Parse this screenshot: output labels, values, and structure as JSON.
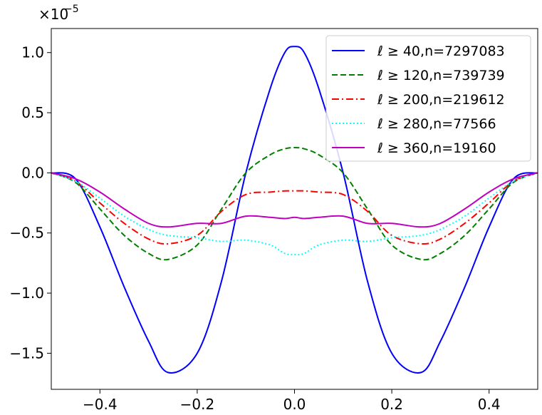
{
  "chart_data": {
    "type": "line",
    "title": "",
    "xlabel": "",
    "ylabel": "",
    "y_offset_base": "×10",
    "y_offset_exp": "−5",
    "xlim": [
      -0.5,
      0.5
    ],
    "ylim": [
      -1.8,
      1.2
    ],
    "xticks": [
      -0.4,
      -0.2,
      0.0,
      0.2,
      0.4
    ],
    "xtick_labels": [
      "−0.4",
      "−0.2",
      "0.0",
      "0.2",
      "0.4"
    ],
    "yticks": [
      1.0,
      0.5,
      0.0,
      -0.5,
      -1.0,
      -1.5
    ],
    "ytick_labels": [
      "1.0",
      "0.5",
      "0.0",
      "−0.5",
      "−1.0",
      "−1.5"
    ],
    "grid": false,
    "legend_position": "top-right",
    "x": [
      -0.5,
      -0.45,
      -0.4,
      -0.35,
      -0.3,
      -0.26,
      -0.2,
      -0.15,
      -0.1,
      -0.05,
      -0.02,
      0.0,
      0.02,
      0.05,
      0.1,
      0.15,
      0.2,
      0.26,
      0.3,
      0.35,
      0.4,
      0.45,
      0.5
    ],
    "series": [
      {
        "name": "ℓ ≥ 40,n=7297083",
        "color": "#0000ff",
        "dash": "solid",
        "values": [
          0.0,
          -0.05,
          -0.45,
          -0.95,
          -1.4,
          -1.66,
          -1.5,
          -0.9,
          0.0,
          0.7,
          1.0,
          1.05,
          1.0,
          0.7,
          0.0,
          -0.9,
          -1.5,
          -1.66,
          -1.4,
          -0.95,
          -0.45,
          -0.05,
          0.0
        ]
      },
      {
        "name": "ℓ ≥ 120,n=739739",
        "color": "#008000",
        "dash": "dashed",
        "values": [
          0.0,
          -0.08,
          -0.3,
          -0.52,
          -0.67,
          -0.72,
          -0.6,
          -0.3,
          0.0,
          0.15,
          0.2,
          0.21,
          0.2,
          0.15,
          0.0,
          -0.3,
          -0.6,
          -0.72,
          -0.67,
          -0.52,
          -0.3,
          -0.08,
          0.0
        ]
      },
      {
        "name": "ℓ ≥ 200,n=219612",
        "color": "#ff0000",
        "dash": "dashdot",
        "values": [
          0.0,
          -0.07,
          -0.25,
          -0.42,
          -0.55,
          -0.59,
          -0.52,
          -0.32,
          -0.18,
          -0.16,
          -0.15,
          -0.15,
          -0.15,
          -0.16,
          -0.18,
          -0.32,
          -0.52,
          -0.59,
          -0.55,
          -0.42,
          -0.25,
          -0.07,
          0.0
        ]
      },
      {
        "name": "ℓ ≥ 280,n=77566",
        "color": "#00ffff",
        "dash": "dotted",
        "values": [
          0.0,
          -0.07,
          -0.21,
          -0.36,
          -0.47,
          -0.52,
          -0.54,
          -0.57,
          -0.56,
          -0.6,
          -0.67,
          -0.68,
          -0.67,
          -0.6,
          -0.56,
          -0.57,
          -0.54,
          -0.52,
          -0.47,
          -0.36,
          -0.21,
          -0.07,
          0.0
        ]
      },
      {
        "name": "ℓ ≥ 360,n=19160",
        "color": "#bf00bf",
        "dash": "solid",
        "values": [
          0.0,
          -0.05,
          -0.16,
          -0.3,
          -0.42,
          -0.45,
          -0.42,
          -0.42,
          -0.36,
          -0.37,
          -0.38,
          -0.37,
          -0.38,
          -0.37,
          -0.36,
          -0.42,
          -0.42,
          -0.45,
          -0.42,
          -0.3,
          -0.16,
          -0.05,
          0.0
        ]
      }
    ]
  }
}
